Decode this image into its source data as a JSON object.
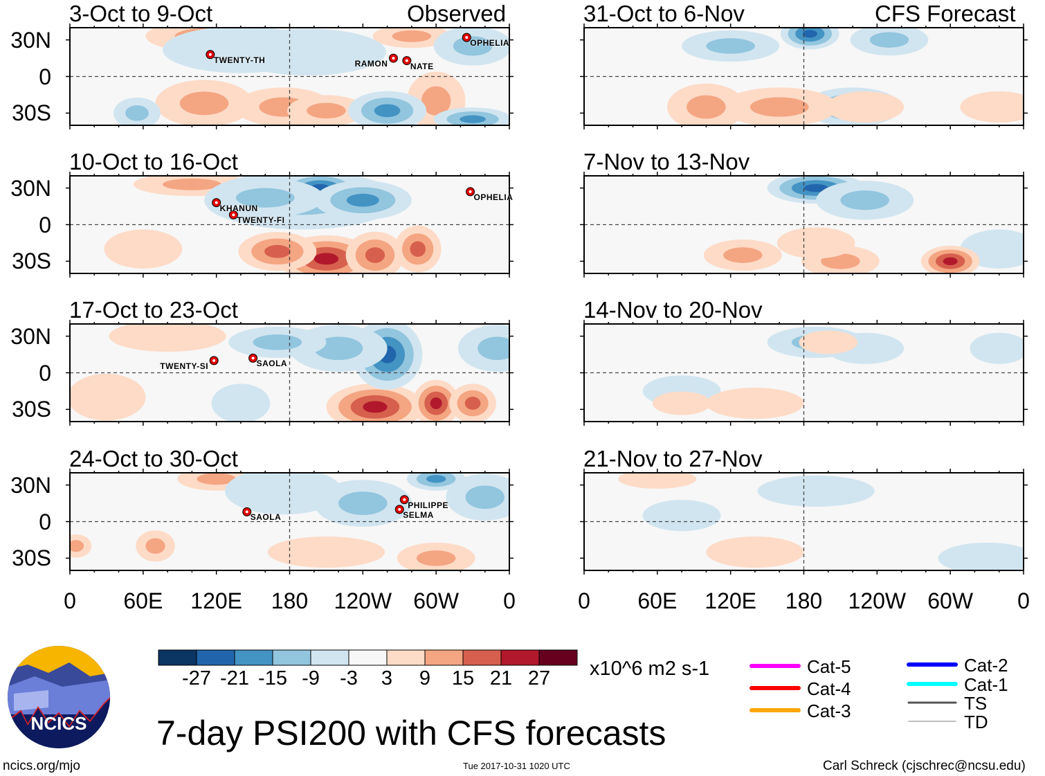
{
  "chart_data": {
    "type": "heatmap",
    "title": "7-day PSI200 with CFS forecasts",
    "units": "x10^6 m2 s-1",
    "observed_label": "Observed",
    "forecast_label": "CFS Forecast",
    "y_ticks": [
      "30N",
      "0",
      "30S"
    ],
    "x_ticks": [
      "0",
      "60E",
      "120E",
      "180",
      "120W",
      "60W",
      "0"
    ],
    "lon_range": [
      0,
      360
    ],
    "lat_range": [
      -40,
      40
    ],
    "panels": [
      {
        "title": "3-Oct to 9-Oct",
        "storms": [
          {
            "name": "TWENTY-TH",
            "lon": 115,
            "lat": 18
          },
          {
            "name": "RAMON",
            "lon": 265,
            "lat": 15
          },
          {
            "name": "NATE",
            "lon": 276,
            "lat": 13
          },
          {
            "name": "OPHELIA",
            "lon": 325,
            "lat": 32
          }
        ]
      },
      {
        "title": "10-Oct to 16-Oct",
        "storms": [
          {
            "name": "KHANUN",
            "lon": 120,
            "lat": 18
          },
          {
            "name": "TWENTY-FI",
            "lon": 134,
            "lat": 8
          },
          {
            "name": "OPHELIA",
            "lon": 328,
            "lat": 27
          }
        ]
      },
      {
        "title": "17-Oct to 23-Oct",
        "storms": [
          {
            "name": "TWENTY-SI",
            "lon": 118,
            "lat": 10
          },
          {
            "name": "SAOLA",
            "lon": 150,
            "lat": 12
          }
        ]
      },
      {
        "title": "24-Oct to 30-Oct",
        "storms": [
          {
            "name": "SAOLA",
            "lon": 145,
            "lat": 8
          },
          {
            "name": "PHILIPPE",
            "lon": 274,
            "lat": 18
          },
          {
            "name": "SELMA",
            "lon": 270,
            "lat": 10
          }
        ]
      },
      {
        "title": "31-Oct to 6-Nov",
        "storms": []
      },
      {
        "title": "7-Nov to 13-Nov",
        "storms": []
      },
      {
        "title": "14-Nov to 20-Nov",
        "storms": []
      },
      {
        "title": "21-Nov to 27-Nov",
        "storms": []
      }
    ],
    "colorbar": {
      "labels": [
        "-27",
        "-21",
        "-15",
        "-9",
        "-3",
        "3",
        "9",
        "15",
        "21",
        "27"
      ],
      "colors": [
        "#0b3563",
        "#2166ac",
        "#4393c3",
        "#92c5de",
        "#d1e5f0",
        "#f7f7f7",
        "#fddbc7",
        "#f4a582",
        "#d6604d",
        "#b2182b",
        "#67001f"
      ]
    },
    "track_legend": [
      {
        "label": "Cat-5",
        "color": "#ff00ff"
      },
      {
        "label": "Cat-4",
        "color": "#ff0000"
      },
      {
        "label": "Cat-3",
        "color": "#ffa500"
      },
      {
        "label": "Cat-2",
        "color": "#0000ff"
      },
      {
        "label": "Cat-1",
        "color": "#00ffff"
      },
      {
        "label": "TS",
        "color": "#555555"
      },
      {
        "label": "TD",
        "color": "#aaaaaa"
      }
    ]
  },
  "logo": {
    "text": "NCICS"
  },
  "footer": {
    "url": "ncics.org/mjo",
    "timestamp": "Tue 2017-10-31 1020 UTC",
    "author": "Carl Schreck (cjschrec@ncsu.edu)"
  }
}
